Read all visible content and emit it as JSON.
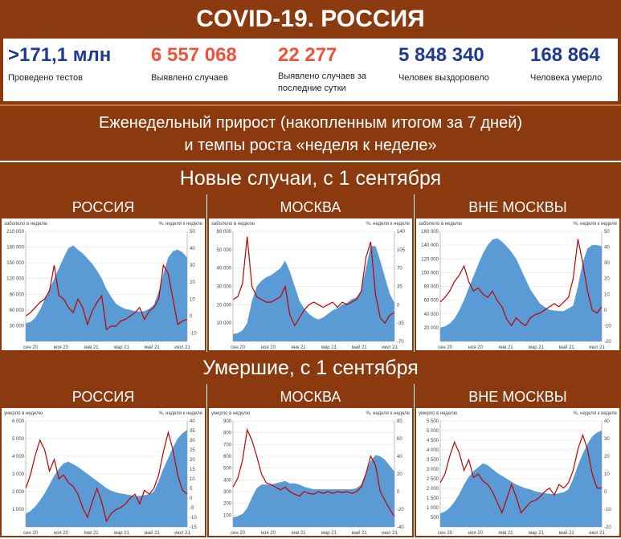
{
  "header": {
    "title": "COVID-19. РОССИЯ"
  },
  "stats": [
    {
      "value": ">171,1 млн",
      "label": "Проведено тестов",
      "color": "#1f3a93"
    },
    {
      "value": "6 557 068",
      "label": "Выявлено случаев",
      "color": "#f0533b"
    },
    {
      "value": "22 277",
      "label": "Выявлено случаев за последние сутки",
      "color": "#f0533b"
    },
    {
      "value": "5 848 340",
      "label": "Человек выздоровело",
      "color": "#1f3a93"
    },
    {
      "value": "168 864",
      "label": "Человека умерло",
      "color": "#1f3a93"
    }
  ],
  "subtitle": {
    "line1": "Еженедельный прирост (накопленным итогом за 7 дней)",
    "line2": "и темпы роста «неделя к неделе»"
  },
  "sections": {
    "cases": "Новые случаи, с 1 сентября",
    "deaths": "Умершие, с 1 сентября"
  },
  "colors": {
    "band": "#8b3a0f",
    "area": "#5b9bd5",
    "line": "#c00000"
  },
  "chart_data": [
    {
      "type": "area",
      "title": "РОССИЯ",
      "ylabel": "заболело в неделю",
      "y2label": "%, неделя к неделе",
      "yticks": [
        "210 000",
        "180 000",
        "150 000",
        "120 000",
        "90 000",
        "60 000",
        "30 000"
      ],
      "ylim": [
        0,
        210000
      ],
      "y2ticks": [
        "50",
        "40",
        "30",
        "20",
        "10",
        "0",
        "-10"
      ],
      "y2lim": [
        -15,
        50
      ],
      "xticks": [
        "сен 20",
        "ноя 20",
        "янв 21",
        "мар 21",
        "май 21",
        "июл 21"
      ],
      "series": [
        {
          "values": [
            35000,
            37000,
            45000,
            60000,
            80000,
            100000,
            120000,
            140000,
            160000,
            178000,
            183000,
            175000,
            168000,
            158000,
            148000,
            135000,
            120000,
            100000,
            85000,
            72000,
            66000,
            62000,
            60000,
            58000,
            57000,
            58000,
            62000,
            70000,
            95000,
            130000,
            160000,
            172000,
            175000,
            170000,
            160000
          ]
        },
        {
          "values": [
            0,
            2,
            5,
            8,
            10,
            15,
            30,
            12,
            10,
            5,
            2,
            10,
            5,
            -5,
            3,
            8,
            12,
            -8,
            -6,
            -6,
            -3,
            -2,
            0,
            2,
            5,
            -2,
            3,
            5,
            10,
            30,
            25,
            10,
            -5,
            -3,
            -2
          ]
        }
      ]
    },
    {
      "type": "area",
      "title": "МОСКВА",
      "ylabel": "заболело в неделю",
      "y2label": "%, неделя к неделе",
      "yticks": [
        "60 000",
        "50 000",
        "40 000",
        "30 000",
        "20 000",
        "10 000"
      ],
      "ylim": [
        0,
        60000
      ],
      "y2ticks": [
        "140",
        "105",
        "70",
        "35",
        "0",
        "-35",
        "-70"
      ],
      "y2lim": [
        -70,
        140
      ],
      "xticks": [
        "сен 20",
        "ноя 20",
        "янв 21",
        "мар 21",
        "май 21",
        "июл 21"
      ],
      "series": [
        {
          "values": [
            4000,
            4500,
            6000,
            10000,
            22000,
            30000,
            33000,
            35000,
            36000,
            38000,
            40000,
            44000,
            38000,
            30000,
            22000,
            18000,
            15000,
            13000,
            12000,
            13000,
            15000,
            17000,
            18000,
            20000,
            21000,
            23000,
            24000,
            28000,
            40000,
            52000,
            52000,
            44000,
            35000,
            26000,
            21000
          ]
        },
        {
          "values": [
            10,
            15,
            40,
            130,
            35,
            15,
            10,
            5,
            5,
            10,
            15,
            35,
            -20,
            -40,
            -25,
            -10,
            0,
            5,
            0,
            -5,
            0,
            5,
            -5,
            5,
            0,
            5,
            10,
            25,
            90,
            120,
            20,
            -25,
            -35,
            -20,
            -15
          ]
        }
      ]
    },
    {
      "type": "area",
      "title": "ВНЕ МОСКВЫ",
      "ylabel": "заболело в неделю",
      "y2label": "%, неделя к неделе",
      "yticks": [
        "160 000",
        "140 000",
        "120 000",
        "100 000",
        "80 000",
        "60 000",
        "40 000",
        "20 000"
      ],
      "ylim": [
        0,
        160000
      ],
      "y2ticks": [
        "50",
        "40",
        "30",
        "20",
        "10",
        "0",
        "-10",
        "-20"
      ],
      "y2lim": [
        -20,
        50
      ],
      "xticks": [
        "сен 20",
        "ноя 20",
        "янв 21",
        "мар 21",
        "май 21",
        "июл 21"
      ],
      "series": [
        {
          "values": [
            20000,
            22000,
            26000,
            33000,
            45000,
            60000,
            78000,
            95000,
            112000,
            128000,
            140000,
            148000,
            150000,
            145000,
            138000,
            130000,
            120000,
            105000,
            90000,
            75000,
            65000,
            55000,
            50000,
            46000,
            45000,
            44000,
            44000,
            48000,
            52000,
            80000,
            115000,
            135000,
            140000,
            140000,
            138000
          ]
        },
        {
          "values": [
            5,
            8,
            12,
            18,
            22,
            28,
            18,
            12,
            14,
            10,
            8,
            12,
            6,
            2,
            -6,
            -10,
            -5,
            -8,
            -10,
            -5,
            -3,
            -2,
            0,
            2,
            4,
            2,
            5,
            8,
            20,
            45,
            30,
            12,
            0,
            -2,
            2
          ]
        }
      ]
    },
    {
      "type": "area",
      "title": "РОССИЯ",
      "ylabel": "умерло в неделю",
      "y2label": "%, неделя к неделе",
      "yticks": [
        "6 000",
        "5 000",
        "4 000",
        "3 000",
        "2 000",
        "1 000"
      ],
      "ylim": [
        0,
        6000
      ],
      "y2ticks": [
        "40",
        "35",
        "30",
        "25",
        "20",
        "15",
        "10",
        "5",
        "0",
        "-5",
        "-10",
        "-15"
      ],
      "y2lim": [
        -15,
        40
      ],
      "xticks": [
        "сен 20",
        "ноя 20",
        "янв 21",
        "мар 21",
        "май 21",
        "июл 21"
      ],
      "series": [
        {
          "values": [
            750,
            900,
            1150,
            1500,
            1900,
            2400,
            2900,
            3300,
            3600,
            3700,
            3550,
            3400,
            3200,
            3000,
            2800,
            2600,
            2400,
            2200,
            2050,
            1950,
            1900,
            1850,
            1800,
            1750,
            1750,
            1800,
            1850,
            2000,
            2600,
            3300,
            3900,
            4500,
            5000,
            5300,
            5500
          ]
        },
        {
          "values": [
            5,
            12,
            22,
            30,
            25,
            14,
            20,
            10,
            12,
            8,
            6,
            2,
            -5,
            -10,
            -2,
            5,
            -2,
            -12,
            -8,
            -6,
            -5,
            -3,
            0,
            2,
            -3,
            4,
            2,
            5,
            12,
            24,
            34,
            25,
            12,
            4,
            2
          ]
        }
      ]
    },
    {
      "type": "area",
      "title": "МОСКВА",
      "ylabel": "умерло в неделю",
      "y2label": "%, неделя к неделе",
      "yticks": [
        "900",
        "800",
        "700",
        "600",
        "500",
        "400",
        "300",
        "200",
        "100"
      ],
      "ylim": [
        0,
        900
      ],
      "y2ticks": [
        "80",
        "60",
        "40",
        "20",
        "0",
        "-20",
        "-40"
      ],
      "y2lim": [
        -40,
        80
      ],
      "xticks": [
        "сен 20",
        "ноя 20",
        "янв 21",
        "мар 21",
        "май 21",
        "июл 21"
      ],
      "series": [
        {
          "values": [
            80,
            90,
            110,
            160,
            250,
            330,
            360,
            360,
            360,
            370,
            380,
            390,
            370,
            370,
            360,
            340,
            330,
            320,
            320,
            320,
            320,
            320,
            320,
            320,
            320,
            320,
            330,
            360,
            460,
            560,
            610,
            600,
            570,
            520,
            470
          ]
        },
        {
          "values": [
            5,
            15,
            35,
            70,
            58,
            40,
            20,
            10,
            8,
            5,
            2,
            5,
            0,
            -3,
            -5,
            0,
            -2,
            -3,
            0,
            -2,
            0,
            -2,
            0,
            -1,
            0,
            -2,
            0,
            5,
            20,
            40,
            30,
            0,
            -10,
            -20,
            -28
          ]
        }
      ]
    },
    {
      "type": "area",
      "title": "ВНЕ МОСКВЫ",
      "ylabel": "умерло в неделю",
      "y2label": "%, неделя к неделе",
      "yticks": [
        "5 500",
        "5 000",
        "4 500",
        "4 000",
        "3 500",
        "3 000",
        "2 500",
        "2 000",
        "1 500",
        "1 000",
        "500"
      ],
      "ylim": [
        0,
        5500
      ],
      "y2ticks": [
        "40",
        "30",
        "20",
        "10",
        "0",
        "-10",
        "-20"
      ],
      "y2lim": [
        -20,
        40
      ],
      "xticks": [
        "сен 20",
        "ноя 20",
        "янв 21",
        "мар 21",
        "май 21",
        "июл 21"
      ],
      "series": [
        {
          "values": [
            700,
            800,
            1000,
            1300,
            1700,
            2200,
            2600,
            2900,
            3100,
            3300,
            3200,
            3000,
            2800,
            2650,
            2500,
            2350,
            2200,
            2100,
            2000,
            1950,
            1850,
            1800,
            1750,
            1720,
            1700,
            1750,
            1800,
            1950,
            2500,
            3200,
            3800,
            4300,
            4700,
            4900,
            5000
          ]
        },
        {
          "values": [
            5,
            10,
            20,
            28,
            22,
            12,
            18,
            8,
            10,
            6,
            4,
            0,
            -6,
            -12,
            -4,
            4,
            -3,
            -12,
            -9,
            -6,
            -5,
            -3,
            0,
            2,
            -2,
            4,
            2,
            5,
            12,
            24,
            32,
            24,
            10,
            2,
            2
          ]
        }
      ]
    }
  ]
}
